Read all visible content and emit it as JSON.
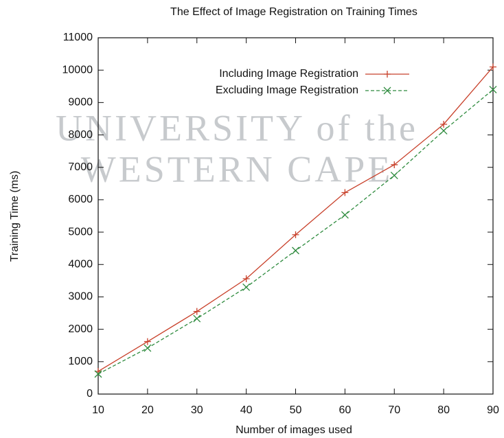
{
  "chart_data": {
    "type": "line",
    "title": "The Effect of Image Registration on Training Times",
    "xlabel": "Number of images used",
    "ylabel": "Training Time (ms)",
    "watermark": [
      "UNIVERSITY of the",
      "WESTERN CAPE"
    ],
    "x": [
      10,
      20,
      30,
      40,
      50,
      60,
      70,
      80,
      90
    ],
    "series": [
      {
        "name": "Including Image Registration",
        "color": "#c8402a",
        "dash": false,
        "marker": "plus",
        "values": [
          700,
          1620,
          2550,
          3560,
          4920,
          6220,
          7080,
          8330,
          10100
        ]
      },
      {
        "name": "Excluding Image Registration",
        "color": "#2e8b3e",
        "dash": true,
        "marker": "cross",
        "values": [
          620,
          1420,
          2330,
          3300,
          4430,
          5530,
          6750,
          8130,
          9400
        ]
      }
    ],
    "xlim": [
      10,
      90
    ],
    "xticks": [
      10,
      20,
      30,
      40,
      50,
      60,
      70,
      80,
      90
    ],
    "ylim": [
      0,
      11000
    ],
    "yticks": [
      0,
      1000,
      2000,
      3000,
      4000,
      5000,
      6000,
      7000,
      8000,
      9000,
      10000,
      11000
    ],
    "grid": false,
    "legend": "top right"
  }
}
